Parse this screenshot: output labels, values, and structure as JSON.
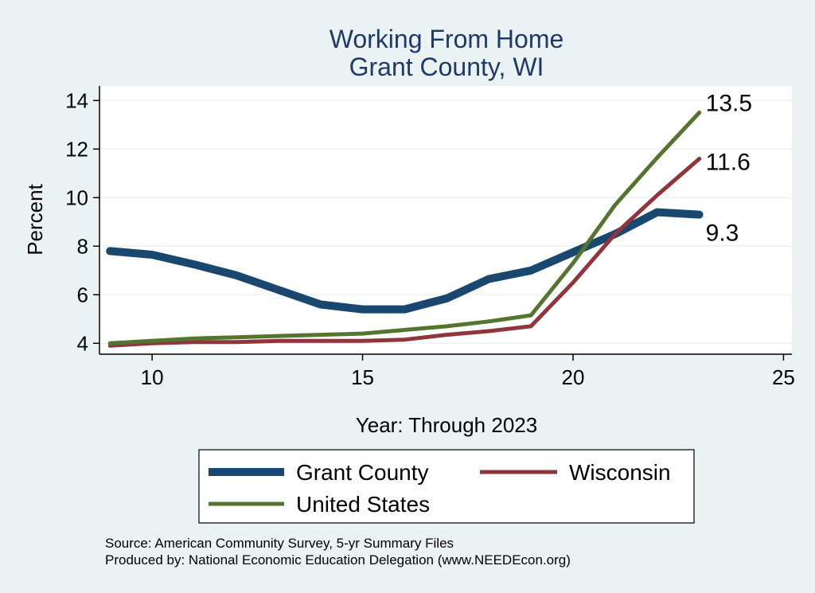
{
  "chart_data": {
    "type": "line",
    "title": [
      "Working From Home",
      "Grant County, WI"
    ],
    "xlabel": "Year: Through 2023",
    "ylabel": "Percent",
    "xlim": [
      8.75,
      25.2
    ],
    "ylim": [
      3.55,
      14.6
    ],
    "xticks": [
      10,
      15,
      20,
      25
    ],
    "yticks": [
      4,
      6,
      8,
      10,
      12,
      14
    ],
    "grid": true,
    "legend_position": "bottom",
    "x": [
      9,
      10,
      11,
      12,
      13,
      14,
      15,
      16,
      17,
      18,
      19,
      20,
      21,
      22,
      23
    ],
    "series": [
      {
        "name": "Grant County",
        "color": "#1a476f",
        "values": [
          7.8,
          7.65,
          7.25,
          6.8,
          6.2,
          5.6,
          5.4,
          5.4,
          5.85,
          6.65,
          7.0,
          7.75,
          8.5,
          9.4,
          9.3
        ],
        "end_label": "9.3"
      },
      {
        "name": "Wisconsin",
        "color": "#90353b",
        "values": [
          3.9,
          4.0,
          4.05,
          4.05,
          4.1,
          4.1,
          4.1,
          4.15,
          4.35,
          4.5,
          4.7,
          6.5,
          8.5,
          10.1,
          11.6
        ],
        "end_label": "11.6"
      },
      {
        "name": "United States",
        "color": "#55752f",
        "values": [
          4.0,
          4.1,
          4.2,
          4.25,
          4.3,
          4.35,
          4.4,
          4.55,
          4.7,
          4.9,
          5.15,
          7.3,
          9.7,
          11.65,
          13.5
        ],
        "end_label": "13.5"
      }
    ]
  },
  "notes": [
    "Source: American Community Survey, 5-yr Summary Files",
    "Produced by: National Economic Education Delegation (www.NEEDEcon.org)"
  ]
}
